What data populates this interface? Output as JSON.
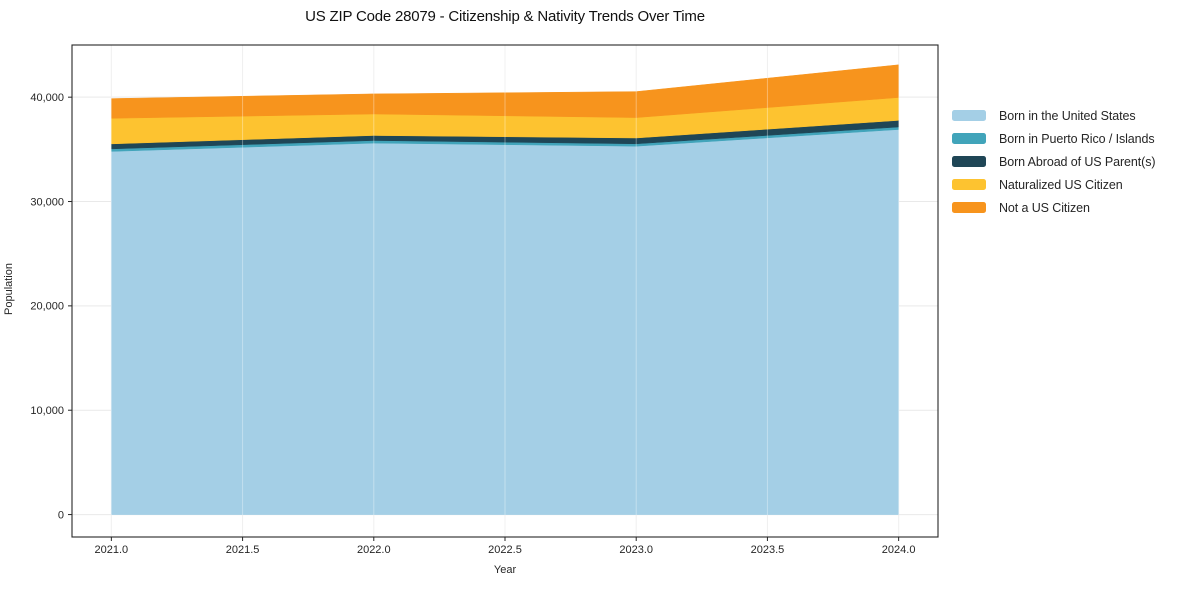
{
  "chart_data": {
    "type": "area",
    "stacked": true,
    "title": "US ZIP Code 28079 - Citizenship & Nativity Trends Over Time",
    "xlabel": "Year",
    "ylabel": "Population",
    "x": [
      2021,
      2022,
      2023,
      2024
    ],
    "series": [
      {
        "name": "Born in the United States",
        "color": "#a4cfe6",
        "values": [
          34800,
          35600,
          35300,
          36900
        ]
      },
      {
        "name": "Born in Puerto Rico / Islands",
        "color": "#41a4ba",
        "values": [
          240,
          250,
          230,
          240
        ]
      },
      {
        "name": "Born Abroad of US Parent(s)",
        "color": "#1f4656",
        "values": [
          480,
          480,
          560,
          630
        ]
      },
      {
        "name": "Naturalized US Citizen",
        "color": "#fdc330",
        "values": [
          2460,
          2060,
          1950,
          2200
        ]
      },
      {
        "name": "Not a US Citizen",
        "color": "#f7941d",
        "values": [
          1880,
          1920,
          2490,
          3130
        ]
      }
    ],
    "x_ticks": {
      "values": [
        2021.0,
        2021.5,
        2022.0,
        2022.5,
        2023.0,
        2023.5,
        2024.0
      ],
      "labels": [
        "2021.0",
        "2021.5",
        "2022.0",
        "2022.5",
        "2023.0",
        "2023.5",
        "2024.0"
      ]
    },
    "y_ticks": {
      "values": [
        0,
        10000,
        20000,
        30000,
        40000
      ],
      "labels": [
        "0",
        "10,000",
        "20,000",
        "30,000",
        "40,000"
      ]
    },
    "xlim": [
      2020.85,
      2024.15
    ],
    "ylim": [
      -2150,
      45000
    ],
    "grid": true,
    "legend_position": "right",
    "colors": {
      "background": "#ffffff",
      "gridline": "#e9e9e9",
      "spine": "#262626",
      "tick_text": "#262626",
      "title_text": "#111111"
    }
  }
}
